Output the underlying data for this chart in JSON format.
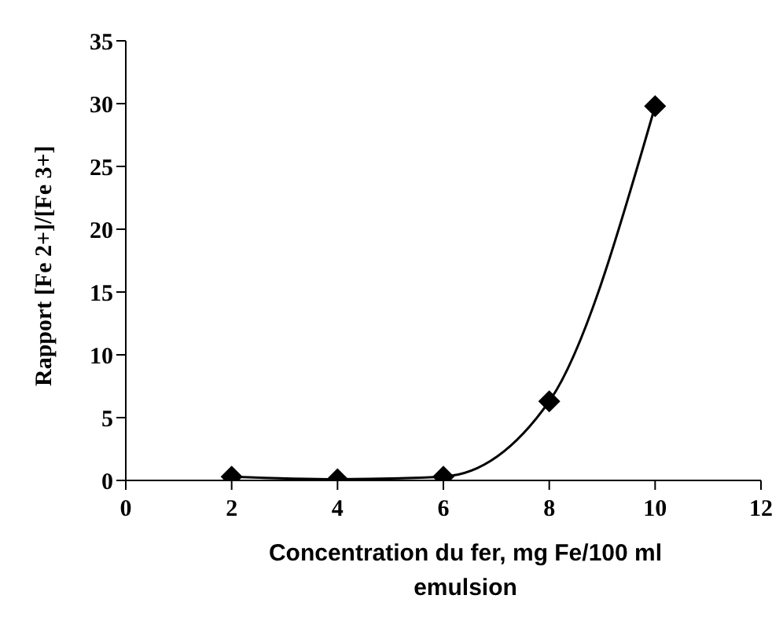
{
  "chart_data": {
    "type": "line",
    "xlabel": "Concentration du fer, mg Fe/100 ml emulsion",
    "ylabel": "Rapport [Fe 2+]/[Fe 3+]",
    "x": [
      2,
      4,
      6,
      8,
      10
    ],
    "series": [
      {
        "color": "#000000",
        "values": [
          0.3,
          0.1,
          0.3,
          6.3,
          29.8
        ]
      }
    ],
    "xlim": [
      0,
      12
    ],
    "xticks": [
      0,
      2,
      4,
      6,
      8,
      10,
      12
    ],
    "ylim": [
      0,
      35
    ],
    "yticks": [
      0,
      5,
      10,
      15,
      20,
      25,
      30,
      35
    ],
    "grid": false,
    "legend": false,
    "marker": "diamond",
    "line_style": "solid"
  }
}
